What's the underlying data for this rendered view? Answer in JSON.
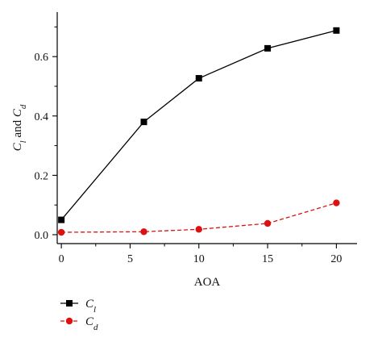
{
  "chart_data": {
    "type": "line",
    "xlabel": "AOA",
    "ylabel": "C_l and C_d",
    "ylabel_parts": {
      "c1": "C",
      "sub1": "l",
      "conj": " and ",
      "c2": "C",
      "sub2": "d"
    },
    "xlim": [
      -0.3,
      21.5
    ],
    "ylim": [
      -0.03,
      0.75
    ],
    "x_ticks": [
      0,
      5,
      10,
      15,
      20
    ],
    "x_tick_labels": [
      "0",
      "5",
      "10",
      "15",
      "20"
    ],
    "y_ticks": [
      0.0,
      0.2,
      0.4,
      0.6
    ],
    "y_tick_labels": [
      "0.0",
      "0.2",
      "0.4",
      "0.6"
    ],
    "grid": false,
    "legend_position": "bottom-left, below plot",
    "series": [
      {
        "name": "C_l",
        "legend_main": "C",
        "legend_sub": "l",
        "x": [
          0,
          6,
          10,
          15,
          20
        ],
        "values": [
          0.05,
          0.38,
          0.527,
          0.628,
          0.688
        ],
        "color": "#000000",
        "marker": "square",
        "line_style": "solid"
      },
      {
        "name": "C_d",
        "legend_main": "C",
        "legend_sub": "d",
        "x": [
          0,
          6,
          10,
          15,
          20
        ],
        "values": [
          0.008,
          0.01,
          0.018,
          0.038,
          0.107
        ],
        "color": "#dd1111",
        "marker": "circle",
        "line_style": "dashed"
      }
    ]
  }
}
